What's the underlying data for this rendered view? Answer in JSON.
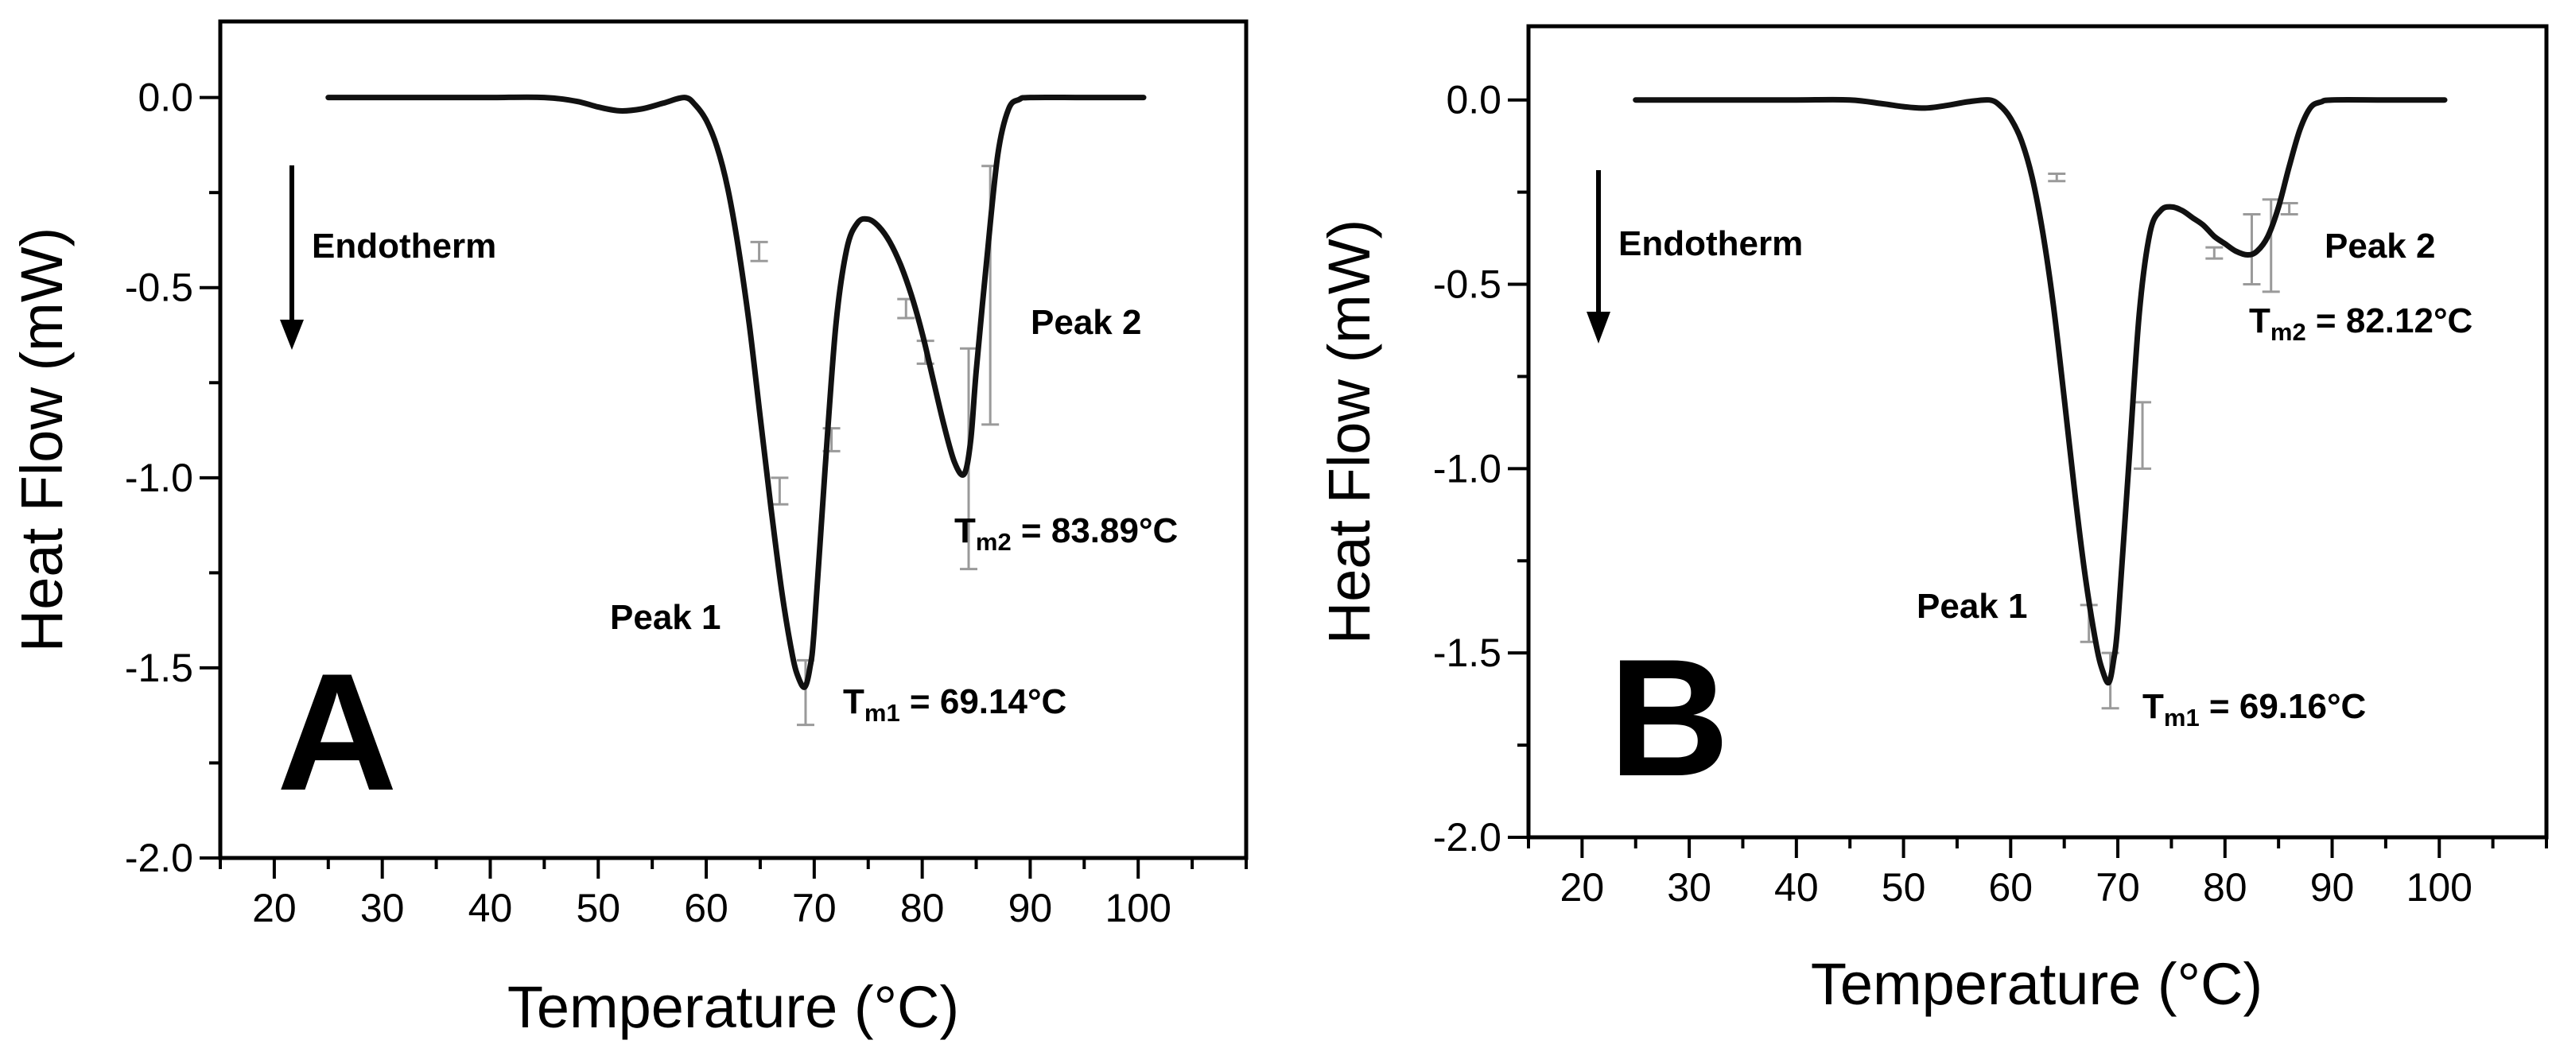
{
  "chart_data": [
    {
      "type": "line",
      "panel_label": "A",
      "xlabel": "Temperature (°C)",
      "ylabel": "Heat Flow (mW)",
      "xlim": [
        15,
        110
      ],
      "ylim": [
        -2.0,
        0.2
      ],
      "xticks": [
        20,
        30,
        40,
        50,
        60,
        70,
        80,
        90,
        100
      ],
      "xtick_labels": [
        "20",
        "30",
        "40",
        "50",
        "60",
        "70",
        "80",
        "90",
        "100"
      ],
      "yticks": [
        0.0,
        -0.5,
        -1.0,
        -1.5,
        -2.0
      ],
      "ytick_labels": [
        "0.0",
        "-0.5",
        "-1.0",
        "-1.5",
        "-2.0"
      ],
      "series": [
        {
          "name": "Heat Flow",
          "x": [
            25,
            30,
            35,
            40,
            45,
            48,
            50,
            52,
            54,
            56,
            58,
            59,
            60,
            61,
            62,
            63,
            64,
            65,
            66,
            67,
            68,
            68.6,
            69.14,
            69.6,
            70,
            71,
            72,
            73,
            74,
            75,
            76,
            77,
            78,
            79,
            80,
            81,
            82,
            83,
            83.89,
            84.5,
            85,
            86,
            87,
            88,
            89,
            90,
            95,
            100.5
          ],
          "y": [
            0,
            0,
            0,
            0,
            0,
            -0.01,
            -0.025,
            -0.035,
            -0.03,
            -0.015,
            0,
            -0.02,
            -0.06,
            -0.13,
            -0.24,
            -0.4,
            -0.6,
            -0.84,
            -1.08,
            -1.3,
            -1.47,
            -1.53,
            -1.55,
            -1.5,
            -1.4,
            -0.98,
            -0.6,
            -0.4,
            -0.33,
            -0.32,
            -0.34,
            -0.38,
            -0.44,
            -0.52,
            -0.62,
            -0.74,
            -0.86,
            -0.96,
            -0.99,
            -0.9,
            -0.72,
            -0.42,
            -0.15,
            -0.03,
            -0.005,
            0,
            0,
            0
          ]
        }
      ],
      "error_bars": [
        {
          "x": 64.9,
          "ylow": -0.38,
          "yhigh": -0.43
        },
        {
          "x": 66.8,
          "ylow": -1.0,
          "yhigh": -1.07
        },
        {
          "x": 69.2,
          "ylow": -1.48,
          "yhigh": -1.65
        },
        {
          "x": 71.6,
          "ylow": -0.87,
          "yhigh": -0.93
        },
        {
          "x": 78.5,
          "ylow": -0.53,
          "yhigh": -0.58
        },
        {
          "x": 80.3,
          "ylow": -0.64,
          "yhigh": -0.7
        },
        {
          "x": 84.3,
          "ylow": -0.66,
          "yhigh": -1.24
        },
        {
          "x": 86.3,
          "ylow": -0.18,
          "yhigh": -0.86
        }
      ],
      "annotations": {
        "arrow_label": "Endotherm",
        "peak1_label": "Peak 1",
        "peak2_label": "Peak 2",
        "tm1": {
          "prefix": "T",
          "sub": "m1",
          "value": " = 69.14°C"
        },
        "tm2": {
          "prefix": "T",
          "sub": "m2",
          "value": " = 83.89°C"
        }
      }
    },
    {
      "type": "line",
      "panel_label": "B",
      "xlabel": "Temperature (°C)",
      "ylabel": "Heat Flow (mW)",
      "xlim": [
        15,
        110
      ],
      "ylim": [
        -2.0,
        0.2
      ],
      "xticks": [
        20,
        30,
        40,
        50,
        60,
        70,
        80,
        90,
        100
      ],
      "xtick_labels": [
        "20",
        "30",
        "40",
        "50",
        "60",
        "70",
        "80",
        "90",
        "100"
      ],
      "yticks": [
        0.0,
        -0.5,
        -1.0,
        -1.5,
        -2.0
      ],
      "ytick_labels": [
        "0.0",
        "-0.5",
        "-1.0",
        "-1.5",
        "-2.0"
      ],
      "series": [
        {
          "name": "Heat Flow",
          "x": [
            25,
            30,
            35,
            40,
            45,
            48,
            50,
            52,
            54,
            56,
            58,
            59,
            60,
            61,
            62,
            63,
            64,
            65,
            66,
            67,
            68,
            68.6,
            69.16,
            69.6,
            70,
            71,
            72,
            73,
            74,
            75,
            76,
            77,
            78,
            79,
            80,
            81,
            82.12,
            83,
            84,
            85,
            86,
            87,
            88,
            89,
            90,
            95,
            100.5
          ],
          "y": [
            0,
            0,
            0,
            0,
            0,
            -0.01,
            -0.018,
            -0.022,
            -0.015,
            -0.005,
            0,
            -0.015,
            -0.05,
            -0.11,
            -0.21,
            -0.36,
            -0.56,
            -0.81,
            -1.07,
            -1.3,
            -1.48,
            -1.55,
            -1.58,
            -1.52,
            -1.42,
            -1.0,
            -0.58,
            -0.36,
            -0.3,
            -0.29,
            -0.3,
            -0.32,
            -0.34,
            -0.37,
            -0.39,
            -0.41,
            -0.42,
            -0.41,
            -0.37,
            -0.29,
            -0.18,
            -0.08,
            -0.02,
            -0.005,
            0,
            0,
            0
          ]
        }
      ],
      "error_bars": [
        {
          "x": 64.3,
          "ylow": -0.2,
          "yhigh": -0.22
        },
        {
          "x": 67.3,
          "ylow": -1.37,
          "yhigh": -1.47
        },
        {
          "x": 69.3,
          "ylow": -1.5,
          "yhigh": -1.65
        },
        {
          "x": 72.3,
          "ylow": -0.82,
          "yhigh": -1.0
        },
        {
          "x": 79.0,
          "ylow": -0.4,
          "yhigh": -0.43
        },
        {
          "x": 82.5,
          "ylow": -0.31,
          "yhigh": -0.5
        },
        {
          "x": 84.3,
          "ylow": -0.27,
          "yhigh": -0.52
        },
        {
          "x": 86.0,
          "ylow": -0.28,
          "yhigh": -0.31
        }
      ],
      "annotations": {
        "arrow_label": "Endotherm",
        "peak1_label": "Peak 1",
        "peak2_label": "Peak 2",
        "tm1": {
          "prefix": "T",
          "sub": "m1",
          "value": " = 69.16°C"
        },
        "tm2": {
          "prefix": "T",
          "sub": "m2",
          "value": " = 82.12°C"
        }
      }
    }
  ]
}
